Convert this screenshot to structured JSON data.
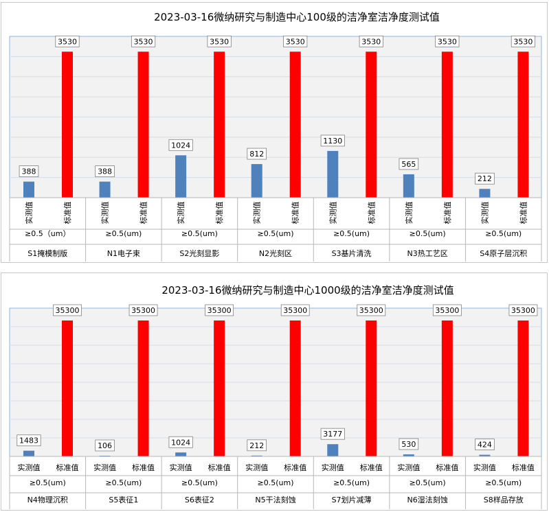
{
  "colors": {
    "measured": "#4f81bd",
    "standard": "#ff0000",
    "plot_bg": "#f2f2f2",
    "grid": "#d3dde8",
    "plot_border": "#8eb4e3"
  },
  "chart_data": [
    {
      "type": "bar",
      "title": "2023-03-16微纳研究与制造中心100级的洁净室洁净度测试值",
      "ylim": [
        0,
        3900
      ],
      "grid": true,
      "series_labels": [
        "实测值",
        "标准值"
      ],
      "groups": [
        {
          "name": "S1掩模制版",
          "particle": "≥0.5（um）",
          "values": [
            388,
            3530
          ]
        },
        {
          "name": "N1电子束",
          "particle": "≥0.5(um)",
          "values": [
            388,
            3530
          ]
        },
        {
          "name": "S2光刻显影",
          "particle": "≥0.5(um)",
          "values": [
            1024,
            3530
          ]
        },
        {
          "name": "N2光刻区",
          "particle": "≥0.5(um)",
          "values": [
            812,
            3530
          ]
        },
        {
          "name": "S3基片清洗",
          "particle": "≥0.5(um)",
          "values": [
            1130,
            3530
          ]
        },
        {
          "name": "N3热工艺区",
          "particle": "≥0.5(um)",
          "values": [
            565,
            3530
          ]
        },
        {
          "name": "S4原子层沉积",
          "particle": "≥0.5(um)",
          "values": [
            212,
            3530
          ]
        }
      ]
    },
    {
      "type": "bar",
      "title": "2023-03-16微纳研究与制造中心1000级的洁净室洁净度测试值",
      "ylim": [
        0,
        38500
      ],
      "grid": true,
      "series_labels": [
        "实测值",
        "标准值"
      ],
      "groups": [
        {
          "name": "N4物理沉积",
          "particle": "≥0.5(um)",
          "values": [
            1483,
            35300
          ]
        },
        {
          "name": "S5表征1",
          "particle": "≥0.5(um)",
          "values": [
            106,
            35300
          ]
        },
        {
          "name": "S6表征2",
          "particle": "≥0.5(um)",
          "values": [
            1024,
            35300
          ]
        },
        {
          "name": "N5干法刻蚀",
          "particle": "≥0.5(um)",
          "values": [
            212,
            35300
          ]
        },
        {
          "name": "S7划片减薄",
          "particle": "≥0.5(um)",
          "values": [
            3177,
            35300
          ]
        },
        {
          "name": "N6湿法刻蚀",
          "particle": "≥0.5(um)",
          "values": [
            530,
            35300
          ]
        },
        {
          "name": "S8样品存放",
          "particle": "≥0.5(um)",
          "values": [
            424,
            35300
          ]
        }
      ]
    }
  ]
}
